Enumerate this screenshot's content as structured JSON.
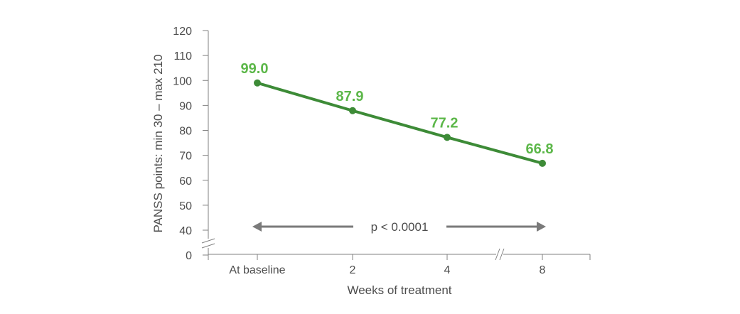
{
  "chart_data": {
    "type": "line",
    "categories": [
      "At baseline",
      "2",
      "4",
      "8"
    ],
    "series": [
      {
        "values": [
          99.0,
          87.9,
          77.2,
          66.8
        ]
      }
    ],
    "data_labels": [
      "99.0",
      "87.9",
      "77.2",
      "66.8"
    ],
    "y_ticks": [
      0,
      40,
      50,
      60,
      70,
      80,
      90,
      100,
      110,
      120
    ],
    "y_tick_labels": [
      "0",
      "40",
      "50",
      "60",
      "70",
      "80",
      "90",
      "100",
      "110",
      "120"
    ],
    "ylim": [
      0,
      120
    ],
    "y_axis_break": [
      0,
      40
    ],
    "x_axis_break_between": [
      "4",
      "8"
    ],
    "xlabel": "Weeks of treatment",
    "ylabel": "PANSS points: min 30 – max 210",
    "annotation": "p < 0.0001",
    "grid": false,
    "colors": {
      "series": "#3d8b37",
      "labels": "#5cb749",
      "axis": "#808080",
      "arrow": "#7a7a7a",
      "text": "#4d4d4d"
    }
  }
}
